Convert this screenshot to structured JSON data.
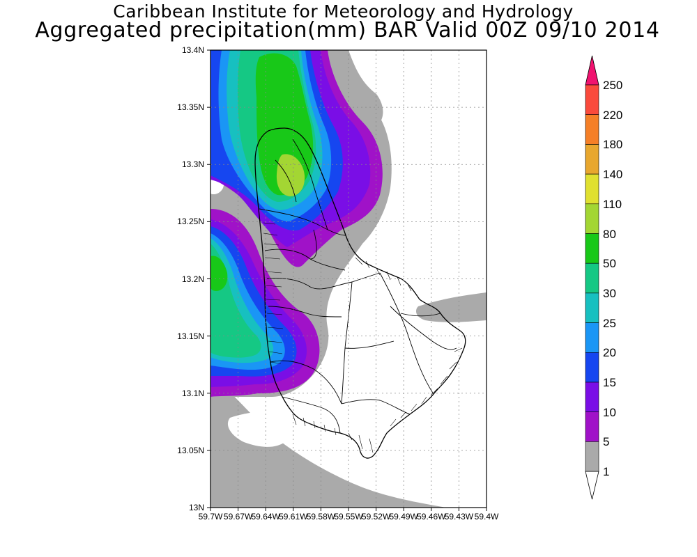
{
  "title": {
    "line1": "Caribbean Institute for Meteorology and Hydrology",
    "line2": "Aggregated precipitation(mm) BAR Valid 00Z 09/10 2014"
  },
  "axes": {
    "lat_labels": [
      "13.4N",
      "13.35N",
      "13.3N",
      "13.25N",
      "13.2N",
      "13.15N",
      "13.1N",
      "13.05N",
      "13N"
    ],
    "lon_labels": [
      "59.7W",
      "59.67W",
      "59.64W",
      "59.61W",
      "59.58W",
      "59.55W",
      "59.52W",
      "59.49W",
      "59.46W",
      "59.43W",
      "59.4W"
    ]
  },
  "colorbar": {
    "labels": [
      "250",
      "220",
      "180",
      "140",
      "110",
      "80",
      "50",
      "30",
      "25",
      "20",
      "15",
      "10",
      "5",
      "1"
    ],
    "colors": [
      "#f0136f",
      "#fa4a3c",
      "#f57f27",
      "#e8a72e",
      "#e0e030",
      "#a3d633",
      "#18c818",
      "#15c884",
      "#17c0c0",
      "#1a96f5",
      "#1646f0",
      "#7a0ee6",
      "#a012c8",
      "#aaaaaa",
      "#ffffff"
    ]
  },
  "map_colors": {
    "c1": "#aaaaaa",
    "c5": "#a012c8",
    "c10": "#7a0ee6",
    "c15": "#1646f0",
    "c20": "#1a96f5",
    "c25": "#17c0c0",
    "c30": "#15c884",
    "c50": "#18c818",
    "c80": "#a3d633"
  }
}
